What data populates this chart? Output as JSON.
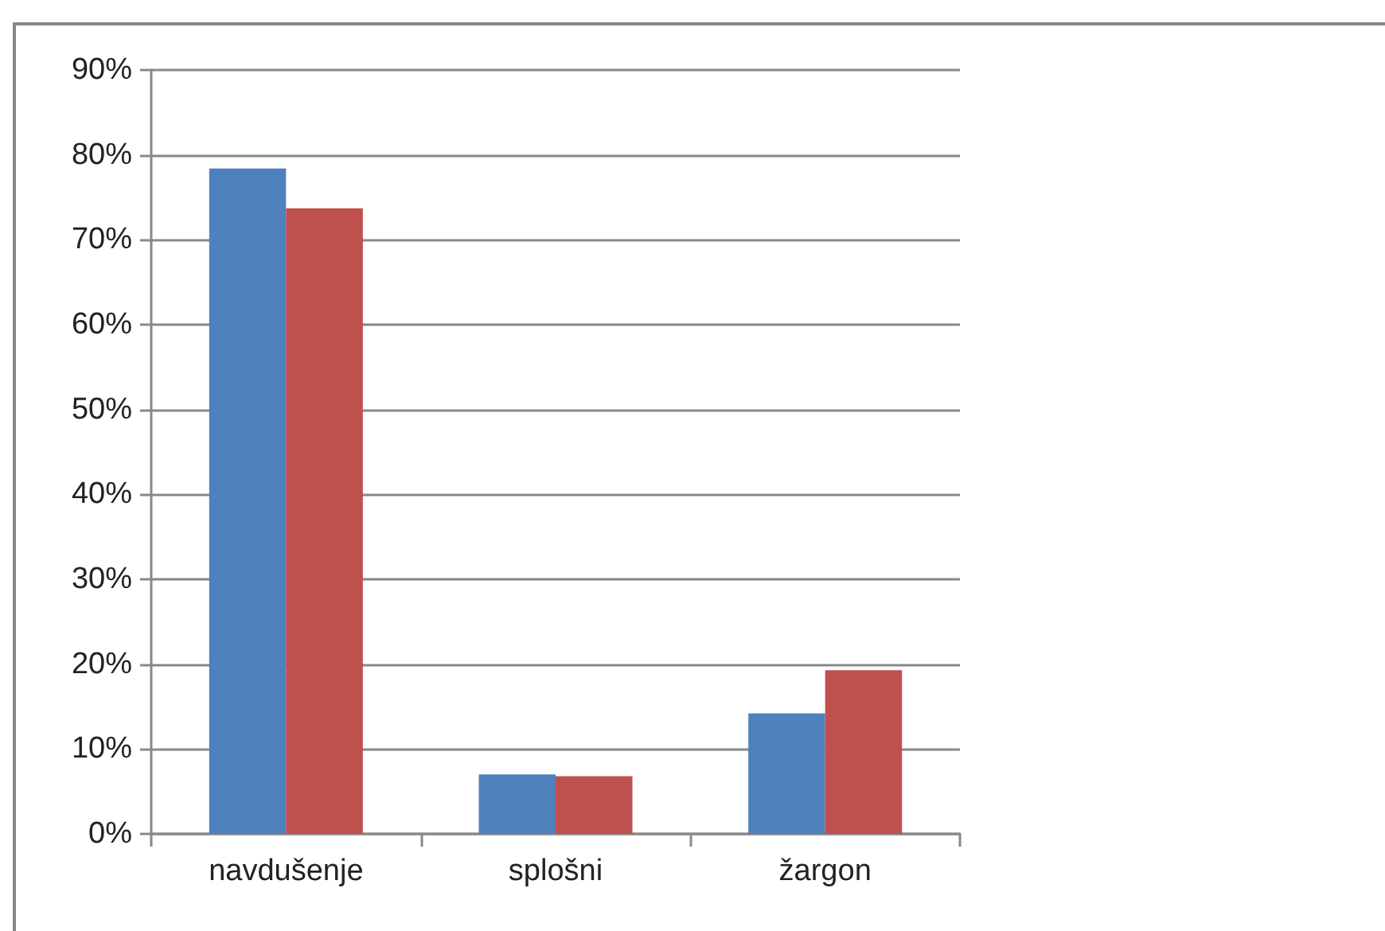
{
  "chart_data": {
    "type": "bar",
    "categories": [
      "navdušenje",
      "splošni",
      "žargon"
    ],
    "series": [
      {
        "color": "#4f81bd",
        "values": [
          78.4,
          7.0,
          14.2
        ]
      },
      {
        "color": "#c0504d",
        "values": [
          73.7,
          6.8,
          19.3
        ]
      }
    ],
    "ylim": [
      0,
      90
    ],
    "yticks": [
      {
        "value": 0,
        "label": "0%"
      },
      {
        "value": 10,
        "label": "10%"
      },
      {
        "value": 20,
        "label": "20%"
      },
      {
        "value": 30,
        "label": "30%"
      },
      {
        "value": 40,
        "label": "40%"
      },
      {
        "value": 50,
        "label": "50%"
      },
      {
        "value": 60,
        "label": "60%"
      },
      {
        "value": 70,
        "label": "70%"
      },
      {
        "value": 80,
        "label": "80%"
      },
      {
        "value": 90,
        "label": "90%"
      }
    ],
    "grid": "y"
  }
}
